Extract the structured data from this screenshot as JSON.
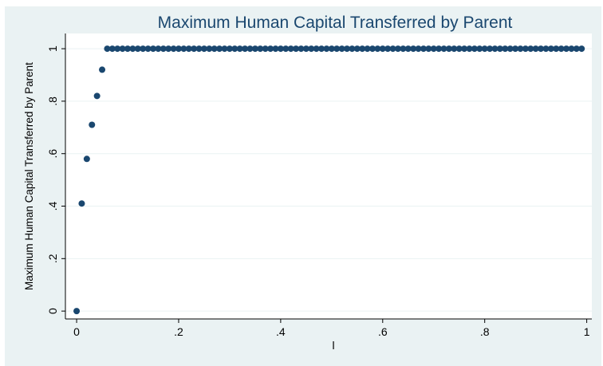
{
  "chart_data": {
    "type": "scatter",
    "title": "Maximum Human Capital Transferred by Parent",
    "x_label": "l",
    "y_label": "Maximum Human Capital Transferred by Parent",
    "color": "#1a476f",
    "grid": true,
    "x": [
      0,
      0.01,
      0.02,
      0.03,
      0.04,
      0.05,
      0.06,
      0.07,
      0.08,
      0.09,
      0.1,
      0.11,
      0.12,
      0.13,
      0.14,
      0.15,
      0.16,
      0.17,
      0.18,
      0.19,
      0.2,
      0.21,
      0.22,
      0.23,
      0.24,
      0.25,
      0.26,
      0.27,
      0.28,
      0.29,
      0.3,
      0.31,
      0.32,
      0.33,
      0.34,
      0.35,
      0.36,
      0.37,
      0.38,
      0.39,
      0.4,
      0.41,
      0.42,
      0.43,
      0.44,
      0.45,
      0.46,
      0.47,
      0.48,
      0.49,
      0.5,
      0.51,
      0.52,
      0.53,
      0.54,
      0.55,
      0.56,
      0.57,
      0.58,
      0.59,
      0.6,
      0.61,
      0.62,
      0.63,
      0.64,
      0.65,
      0.66,
      0.67,
      0.68,
      0.69,
      0.7,
      0.71,
      0.72,
      0.73,
      0.74,
      0.75,
      0.76,
      0.77,
      0.78,
      0.79,
      0.8,
      0.81,
      0.82,
      0.83,
      0.84,
      0.85,
      0.86,
      0.87,
      0.88,
      0.89,
      0.9,
      0.91,
      0.92,
      0.93,
      0.94,
      0.95,
      0.96,
      0.97,
      0.98,
      0.99
    ],
    "values": [
      0,
      0.41,
      0.58,
      0.71,
      0.82,
      0.92,
      1,
      1,
      1,
      1,
      1,
      1,
      1,
      1,
      1,
      1,
      1,
      1,
      1,
      1,
      1,
      1,
      1,
      1,
      1,
      1,
      1,
      1,
      1,
      1,
      1,
      1,
      1,
      1,
      1,
      1,
      1,
      1,
      1,
      1,
      1,
      1,
      1,
      1,
      1,
      1,
      1,
      1,
      1,
      1,
      1,
      1,
      1,
      1,
      1,
      1,
      1,
      1,
      1,
      1,
      1,
      1,
      1,
      1,
      1,
      1,
      1,
      1,
      1,
      1,
      1,
      1,
      1,
      1,
      1,
      1,
      1,
      1,
      1,
      1,
      1,
      1,
      1,
      1,
      1,
      1,
      1,
      1,
      1,
      1,
      1,
      1,
      1,
      1,
      1,
      1,
      1,
      1,
      1,
      1
    ],
    "xlim": [
      -0.022,
      1.01
    ],
    "ylim": [
      -0.03,
      1.058
    ],
    "xticks": [
      0,
      {
        "value": 0.2,
        "label": ".2"
      },
      {
        "value": 0.4,
        "label": ".4"
      },
      {
        "value": 0.6,
        "label": ".6"
      },
      {
        "value": 0.8,
        "label": ".8"
      },
      1
    ],
    "yticks": [
      0,
      {
        "value": 0.2,
        "label": ".2"
      },
      {
        "value": 0.4,
        "label": ".4"
      },
      {
        "value": 0.6,
        "label": ".6"
      },
      {
        "value": 0.8,
        "label": ".8"
      },
      1
    ]
  }
}
